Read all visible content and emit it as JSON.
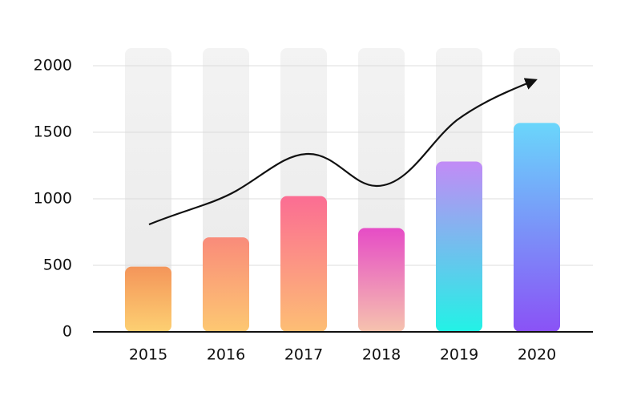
{
  "chart_data": {
    "type": "bar",
    "categories": [
      "2015",
      "2016",
      "2017",
      "2018",
      "2019",
      "2020"
    ],
    "values": [
      490,
      710,
      1020,
      780,
      1280,
      1570
    ],
    "colors": [
      [
        "#f4955a",
        "#fdd072"
      ],
      [
        "#f98b7a",
        "#fdc872"
      ],
      [
        "#fb6d93",
        "#fdbe74"
      ],
      [
        "#e64cc6",
        "#f6c3ae"
      ],
      [
        "#c28bf6",
        "#22f2e6"
      ],
      [
        "#6ad6fb",
        "#8a52f6"
      ]
    ],
    "ylim": [
      0,
      2000
    ],
    "yticks": [
      0,
      500,
      1000,
      1500,
      2000
    ],
    "grid": true
  }
}
